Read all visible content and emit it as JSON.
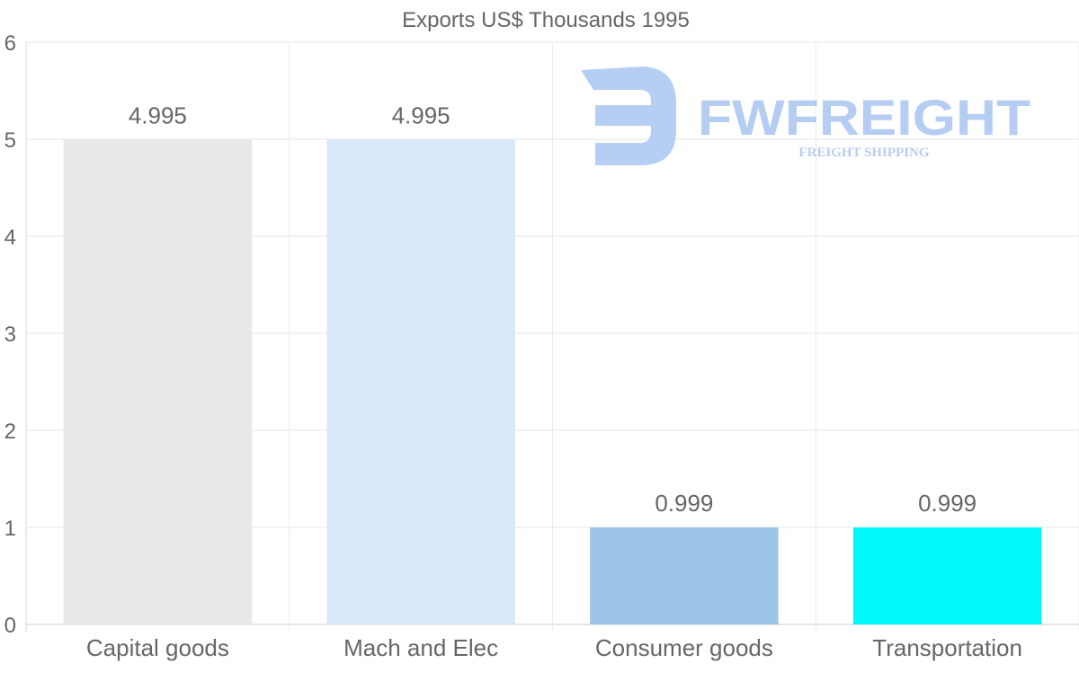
{
  "chart_data": {
    "type": "bar",
    "title": "Exports US$ Thousands 1995",
    "categories": [
      "Capital goods",
      "Mach and Elec",
      "Consumer goods",
      "Transportation"
    ],
    "values": [
      4.995,
      4.995,
      0.999,
      0.999
    ],
    "value_labels": [
      "4.995",
      "4.995",
      "0.999",
      "0.999"
    ],
    "colors": [
      "#e8e8e8",
      "#d7e8fa",
      "#9bc4e6",
      "#00f8f8"
    ],
    "xlabel": "",
    "ylabel": "",
    "ylim": [
      0,
      6
    ],
    "yticks": [
      0,
      1,
      2,
      3,
      4,
      5,
      6
    ],
    "grid": true,
    "legend": "none"
  },
  "watermark": {
    "title": "FWFREIGHT",
    "subtitle": "FREIGHT SHIPPING",
    "color": "#9dbdf0"
  }
}
